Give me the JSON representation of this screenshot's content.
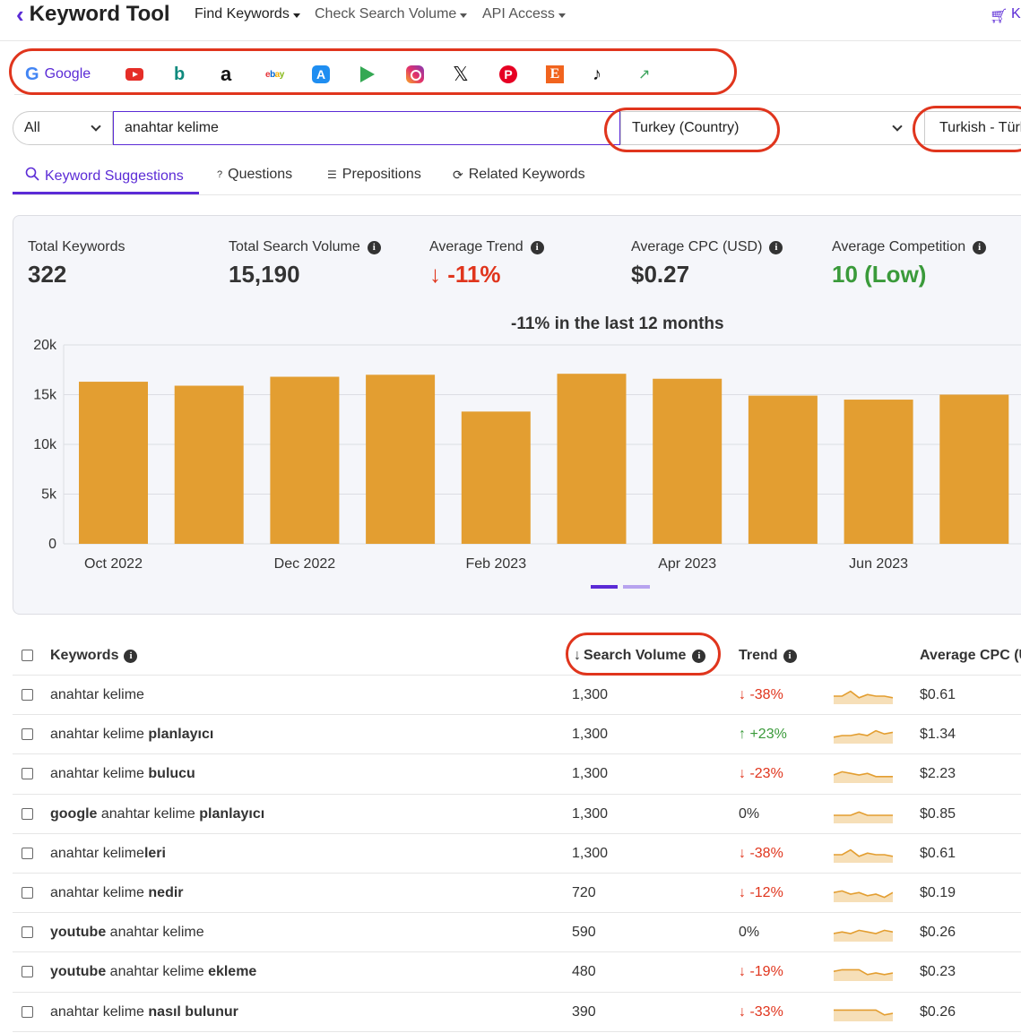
{
  "app": {
    "logo_mark": "‹",
    "logo_text": "Keyword Tool"
  },
  "nav": {
    "items": [
      {
        "label": "Find Keywords"
      },
      {
        "label": "Check Search Volume"
      },
      {
        "label": "API Access"
      }
    ],
    "cart_label": "K"
  },
  "platforms": {
    "google_label": "Google",
    "icons": [
      "youtube-icon",
      "bing-icon",
      "amazon-icon",
      "ebay-icon",
      "app-store-icon",
      "play-store-icon",
      "instagram-icon",
      "x-icon",
      "pinterest-icon",
      "etsy-icon",
      "tiktok-icon",
      "trends-icon"
    ]
  },
  "search": {
    "type_value": "All",
    "query": "anahtar kelime",
    "country": "Turkey (Country)",
    "language": "Turkish - Türkçe"
  },
  "tabs": [
    {
      "label": "Keyword Suggestions"
    },
    {
      "label": "Questions"
    },
    {
      "label": "Prepositions"
    },
    {
      "label": "Related Keywords"
    }
  ],
  "stats": {
    "total_keywords_label": "Total Keywords",
    "total_keywords": "322",
    "total_volume_label": "Total Search Volume",
    "total_volume": "15,190",
    "avg_trend_label": "Average Trend",
    "avg_trend": "↓ -11%",
    "avg_cpc_label": "Average CPC (USD)",
    "avg_cpc": "$0.27",
    "avg_comp_label": "Average Competition",
    "avg_comp": "10 (Low)"
  },
  "chart_data": {
    "type": "bar",
    "title": "-11% in the last 12 months",
    "categories": [
      "Oct 2022",
      "Nov 2022",
      "Dec 2022",
      "Jan 2023",
      "Feb 2023",
      "Mar 2023",
      "Apr 2023",
      "May 2023",
      "Jun 2023",
      "Jul 2023"
    ],
    "tick_labels": [
      "Oct 2022",
      "Dec 2022",
      "Feb 2023",
      "Apr 2023",
      "Jun 2023"
    ],
    "values": [
      16300,
      15900,
      16800,
      17000,
      13300,
      17100,
      16600,
      14900,
      14500,
      15000
    ],
    "ylim": [
      0,
      20000
    ],
    "yticks": [
      "0",
      "5k",
      "10k",
      "15k",
      "20k"
    ],
    "color": "#e39e31",
    "grid": true
  },
  "table": {
    "headers": {
      "keywords": "Keywords",
      "volume": "Search Volume",
      "sort_arrow": "↓",
      "trend": "Trend",
      "cpc": "Average CPC (U"
    },
    "rows": [
      {
        "parts": [
          [
            "anahtar kelime",
            false
          ]
        ],
        "volume": "1,300",
        "trend": "↓ -38%",
        "dir": "down",
        "cpc": "$0.61",
        "spark": [
          0.5,
          0.5,
          0.2,
          0.6,
          0.4,
          0.5,
          0.5,
          0.6
        ]
      },
      {
        "parts": [
          [
            "anahtar kelime ",
            false
          ],
          [
            "planlayıcı",
            true
          ]
        ],
        "volume": "1,300",
        "trend": "↑ +23%",
        "dir": "up",
        "cpc": "$1.34",
        "spark": [
          0.6,
          0.5,
          0.5,
          0.4,
          0.5,
          0.2,
          0.4,
          0.3
        ]
      },
      {
        "parts": [
          [
            "anahtar kelime ",
            false
          ],
          [
            "bulucu",
            true
          ]
        ],
        "volume": "1,300",
        "trend": "↓ -23%",
        "dir": "down",
        "cpc": "$2.23",
        "spark": [
          0.5,
          0.3,
          0.4,
          0.5,
          0.4,
          0.6,
          0.6,
          0.6
        ]
      },
      {
        "parts": [
          [
            "google",
            true
          ],
          [
            " anahtar kelime ",
            false
          ],
          [
            "planlayıcı",
            true
          ]
        ],
        "volume": "1,300",
        "trend": "0%",
        "dir": "flat",
        "cpc": "$0.85",
        "spark": [
          0.5,
          0.5,
          0.5,
          0.3,
          0.5,
          0.5,
          0.5,
          0.5
        ]
      },
      {
        "parts": [
          [
            "anahtar kelime",
            false
          ],
          [
            "leri",
            true
          ]
        ],
        "volume": "1,300",
        "trend": "↓ -38%",
        "dir": "down",
        "cpc": "$0.61",
        "spark": [
          0.5,
          0.5,
          0.2,
          0.6,
          0.4,
          0.5,
          0.5,
          0.6
        ]
      },
      {
        "parts": [
          [
            "anahtar kelime ",
            false
          ],
          [
            "nedir",
            true
          ]
        ],
        "volume": "720",
        "trend": "↓ -12%",
        "dir": "down",
        "cpc": "$0.19",
        "spark": [
          0.4,
          0.3,
          0.5,
          0.4,
          0.6,
          0.5,
          0.7,
          0.4
        ]
      },
      {
        "parts": [
          [
            "youtube",
            true
          ],
          [
            " anahtar kelime",
            false
          ]
        ],
        "volume": "590",
        "trend": "0%",
        "dir": "flat",
        "cpc": "$0.26",
        "spark": [
          0.5,
          0.4,
          0.5,
          0.3,
          0.4,
          0.5,
          0.3,
          0.4
        ]
      },
      {
        "parts": [
          [
            "youtube",
            true
          ],
          [
            " anahtar kelime ",
            false
          ],
          [
            "ekleme",
            true
          ]
        ],
        "volume": "480",
        "trend": "↓ -19%",
        "dir": "down",
        "cpc": "$0.23",
        "spark": [
          0.4,
          0.3,
          0.3,
          0.3,
          0.6,
          0.5,
          0.6,
          0.5
        ]
      },
      {
        "parts": [
          [
            "anahtar kelime ",
            false
          ],
          [
            "nasıl bulunur",
            true
          ]
        ],
        "volume": "390",
        "trend": "↓ -33%",
        "dir": "down",
        "cpc": "$0.26",
        "spark": [
          0.3,
          0.3,
          0.3,
          0.3,
          0.3,
          0.3,
          0.6,
          0.5
        ]
      }
    ]
  },
  "colors": {
    "accent": "#5b2bd6",
    "red": "#e0351d",
    "green": "#3a9a3a",
    "bar": "#e39e31"
  }
}
